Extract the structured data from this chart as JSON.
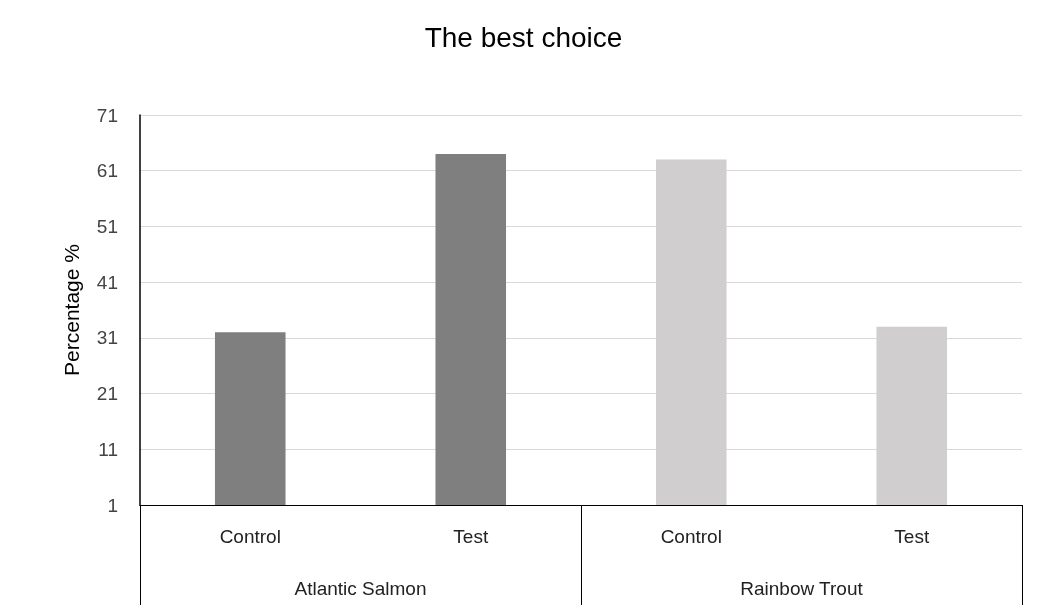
{
  "chart_data": {
    "type": "bar",
    "title": "The best choice",
    "ylabel": "Percentage %",
    "categories": [
      "Control",
      "Test",
      "Control",
      "Test"
    ],
    "values": [
      32,
      64,
      63,
      33
    ],
    "colors": [
      "#7f7f7f",
      "#7f7f7f",
      "#d0cece",
      "#d0cece"
    ],
    "annotations": [
      "Atlantic Salmon",
      "Rainbow Trout"
    ],
    "ylim": [
      1,
      71
    ],
    "yticks": [
      1,
      11,
      21,
      31,
      41,
      51,
      61,
      71
    ],
    "grid": "y"
  }
}
